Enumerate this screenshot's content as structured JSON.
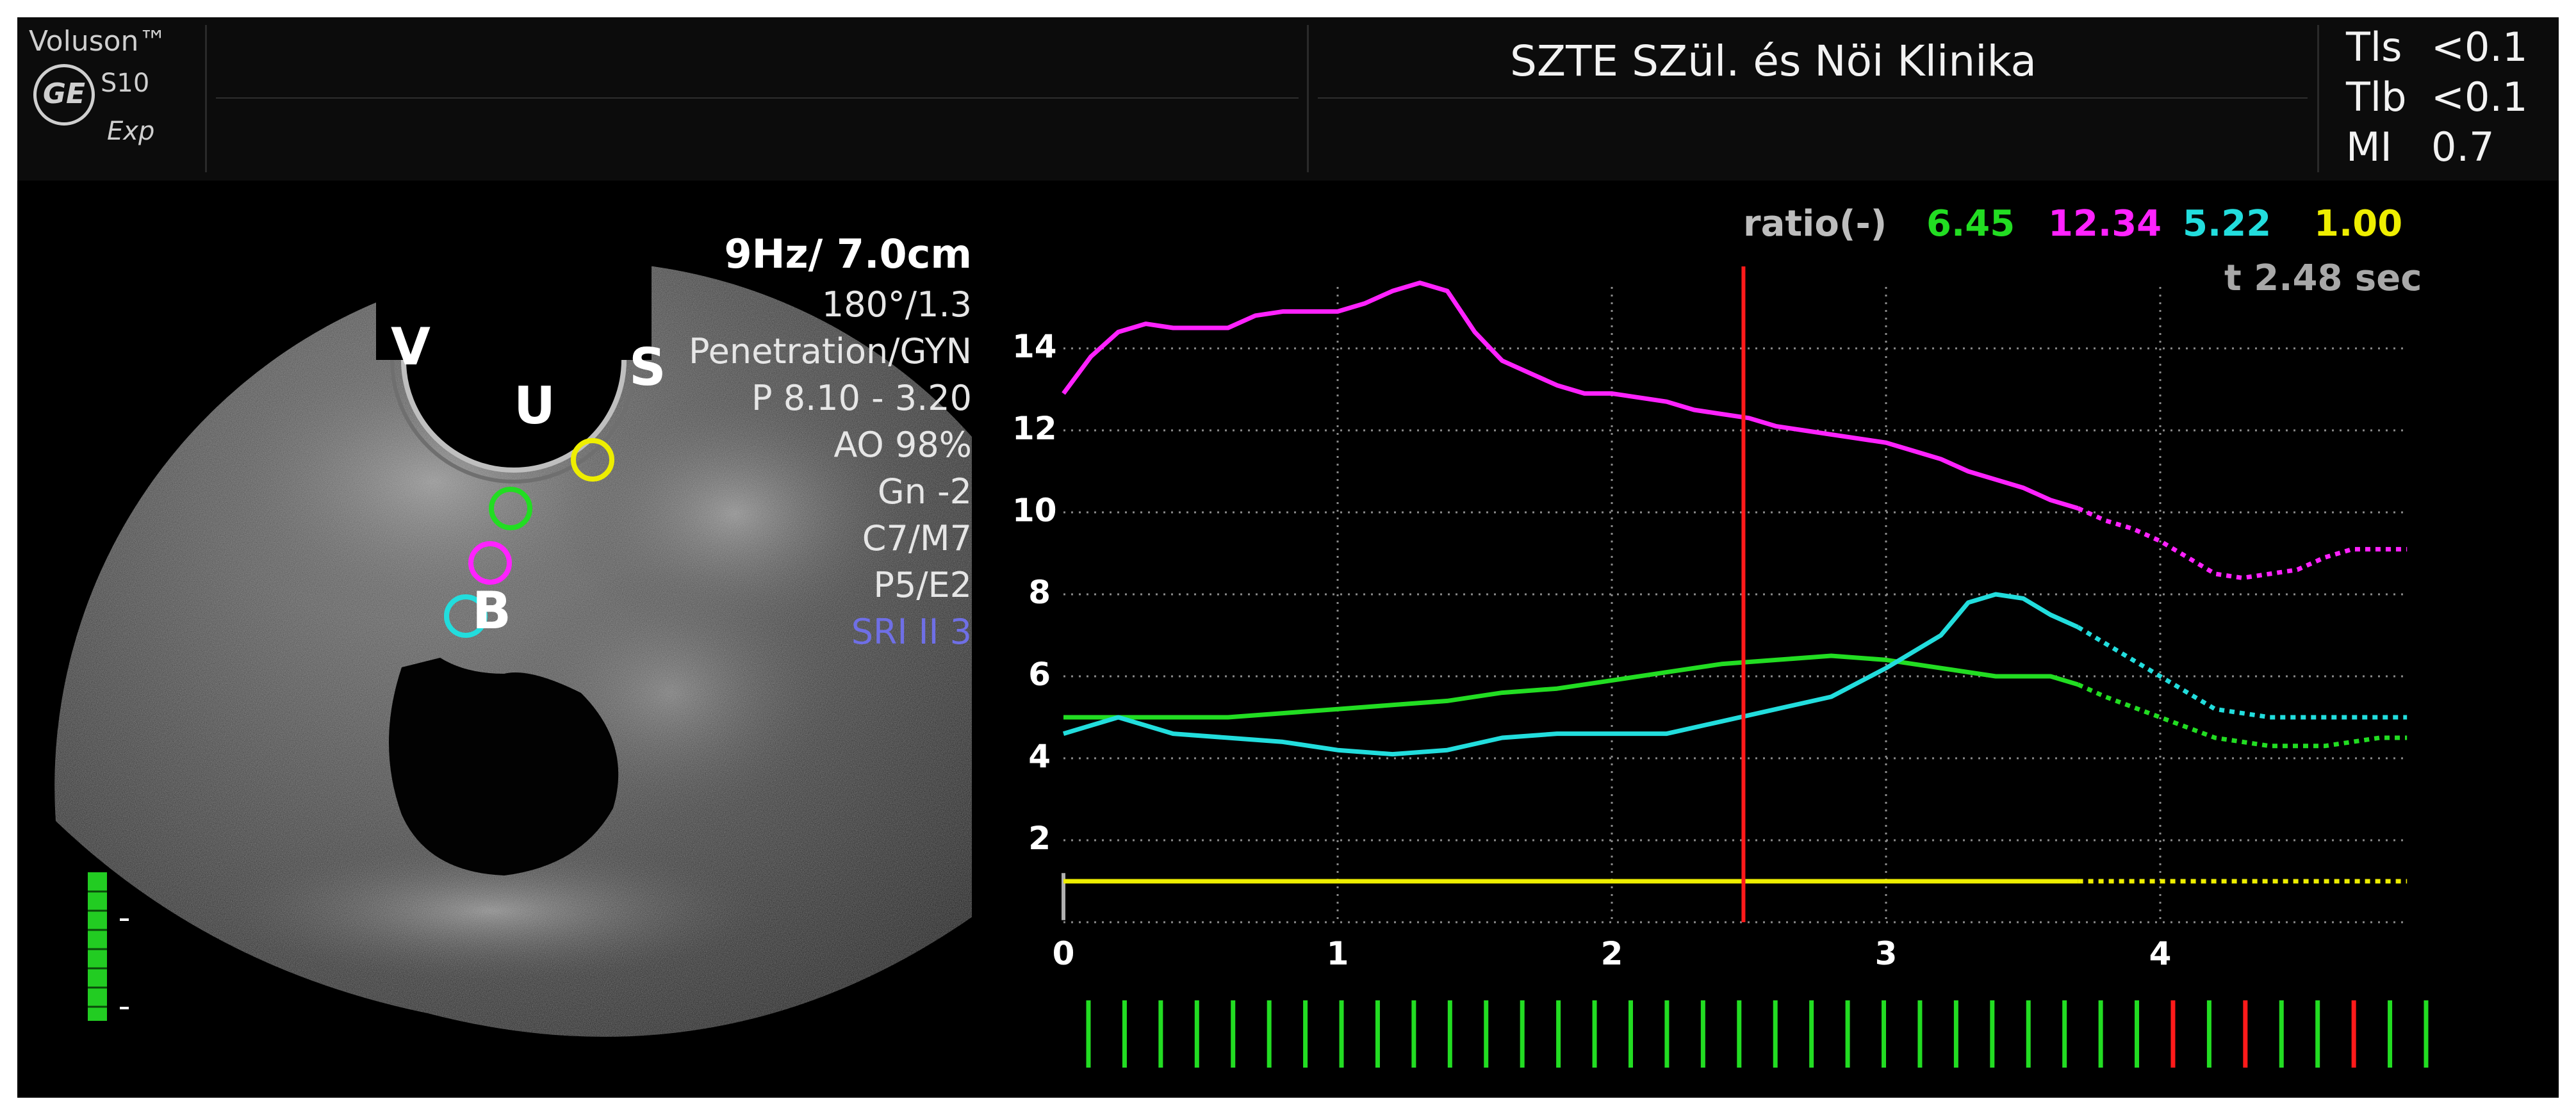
{
  "header": {
    "brand": {
      "name": "Voluson™",
      "model": "S10",
      "sub": "Exp",
      "logo_icon": "ge-logo-icon"
    },
    "clinic": "SZTE SZül. és Nöi Klinika",
    "safety": [
      {
        "label": "Tls",
        "value": "<0.1"
      },
      {
        "label": "Tlb",
        "value": "<0.1"
      },
      {
        "label": "MI",
        "value": "0.7"
      }
    ]
  },
  "image_params": {
    "freq_depth": "9Hz/ 7.0cm",
    "angle": "180°/1.3",
    "mode": "Penetration/GYN",
    "power": "P 8.10 - 3.20",
    "ao": "AO 98%",
    "gain": "Gn  -2",
    "cm": "C7/M7",
    "pe": "P5/E2",
    "sri": "SRI II 3"
  },
  "ultrasound": {
    "labels": {
      "v": "V",
      "u": "U",
      "s": "S",
      "b": "B"
    },
    "roi_colors": [
      "#22dd22",
      "#ff22ff",
      "#22dddd",
      "#eeee00"
    ],
    "gain_bar_color": "#22cc22"
  },
  "ratio_readout": {
    "label": "ratio(-)",
    "values": [
      {
        "value": "6.45",
        "color": "#22dd22"
      },
      {
        "value": "12.34",
        "color": "#ff22ff"
      },
      {
        "value": "5.22",
        "color": "#22dddd"
      },
      {
        "value": "1.00",
        "color": "#eeee00"
      }
    ],
    "time": "t 2.48 sec"
  },
  "chart_data": {
    "type": "line",
    "xlabel": "",
    "ylabel": "",
    "xlim": [
      0,
      5
    ],
    "ylim": [
      0,
      16
    ],
    "x_ticks": [
      "0",
      "1",
      "2",
      "3",
      "4"
    ],
    "y_ticks": [
      "2",
      "4",
      "6",
      "8",
      "10",
      "12",
      "14"
    ],
    "grid": true,
    "cursor_time": 2.48,
    "cursor_color": "#ff1a1a",
    "solid_until": 3.7,
    "series": [
      {
        "color": "#ff22ff",
        "x": [
          0,
          0.1,
          0.2,
          0.3,
          0.4,
          0.5,
          0.6,
          0.7,
          0.8,
          0.9,
          1.0,
          1.1,
          1.2,
          1.3,
          1.4,
          1.5,
          1.6,
          1.7,
          1.8,
          1.9,
          2.0,
          2.1,
          2.2,
          2.3,
          2.4,
          2.5,
          2.6,
          2.7,
          2.8,
          2.9,
          3.0,
          3.1,
          3.2,
          3.3,
          3.4,
          3.5,
          3.6,
          3.7,
          3.8,
          3.9,
          4.0,
          4.1,
          4.2,
          4.3,
          4.4,
          4.5,
          4.6,
          4.7,
          4.8,
          4.9
        ],
        "y": [
          12.9,
          13.8,
          14.4,
          14.6,
          14.5,
          14.5,
          14.5,
          14.8,
          14.9,
          14.9,
          14.9,
          15.1,
          15.4,
          15.6,
          15.4,
          14.4,
          13.7,
          13.4,
          13.1,
          12.9,
          12.9,
          12.8,
          12.7,
          12.5,
          12.4,
          12.3,
          12.1,
          12.0,
          11.9,
          11.8,
          11.7,
          11.5,
          11.3,
          11.0,
          10.8,
          10.6,
          10.3,
          10.1,
          9.8,
          9.6,
          9.3,
          8.9,
          8.5,
          8.4,
          8.5,
          8.6,
          8.9,
          9.1,
          9.1,
          9.1
        ]
      },
      {
        "color": "#22dd22",
        "x": [
          0,
          0.2,
          0.4,
          0.6,
          0.8,
          1.0,
          1.2,
          1.4,
          1.6,
          1.8,
          2.0,
          2.2,
          2.4,
          2.6,
          2.8,
          3.0,
          3.2,
          3.4,
          3.6,
          3.7,
          3.8,
          4.0,
          4.2,
          4.4,
          4.6,
          4.8,
          4.9
        ],
        "y": [
          5.0,
          5.0,
          5.0,
          5.0,
          5.1,
          5.2,
          5.3,
          5.4,
          5.6,
          5.7,
          5.9,
          6.1,
          6.3,
          6.4,
          6.5,
          6.4,
          6.2,
          6.0,
          6.0,
          5.8,
          5.5,
          5.0,
          4.5,
          4.3,
          4.3,
          4.5,
          4.5
        ]
      },
      {
        "color": "#22dddd",
        "x": [
          0,
          0.2,
          0.4,
          0.6,
          0.8,
          1.0,
          1.2,
          1.4,
          1.6,
          1.8,
          2.0,
          2.2,
          2.4,
          2.6,
          2.8,
          3.0,
          3.2,
          3.3,
          3.4,
          3.5,
          3.6,
          3.7,
          3.8,
          4.0,
          4.2,
          4.4,
          4.6,
          4.8,
          4.9
        ],
        "y": [
          4.6,
          5.0,
          4.6,
          4.5,
          4.4,
          4.2,
          4.1,
          4.2,
          4.5,
          4.6,
          4.6,
          4.6,
          4.9,
          5.2,
          5.5,
          6.2,
          7.0,
          7.8,
          8.0,
          7.9,
          7.5,
          7.2,
          6.8,
          6.0,
          5.2,
          5.0,
          5.0,
          5.0,
          5.0
        ]
      },
      {
        "color": "#eeee00",
        "x": [
          0,
          1,
          2,
          3,
          3.7,
          4.0,
          4.3,
          4.6,
          4.9
        ],
        "y": [
          1.0,
          1.0,
          1.0,
          1.0,
          1.0,
          1.0,
          1.0,
          1.0,
          1.0
        ]
      }
    ],
    "frame_markers": {
      "count": 38,
      "colors": [
        "#22dd22",
        "#22dd22",
        "#22dd22",
        "#22dd22",
        "#22dd22",
        "#22dd22",
        "#22dd22",
        "#22dd22",
        "#22dd22",
        "#22dd22",
        "#22dd22",
        "#22dd22",
        "#22dd22",
        "#22dd22",
        "#22dd22",
        "#22dd22",
        "#22dd22",
        "#22dd22",
        "#22dd22",
        "#22dd22",
        "#22dd22",
        "#22dd22",
        "#22dd22",
        "#22dd22",
        "#22dd22",
        "#22dd22",
        "#22dd22",
        "#22dd22",
        "#22dd22",
        "#22dd22",
        "#ff1a1a",
        "#22dd22",
        "#ff1a1a",
        "#22dd22",
        "#22dd22",
        "#ff1a1a",
        "#22dd22",
        "#22dd22"
      ]
    }
  }
}
